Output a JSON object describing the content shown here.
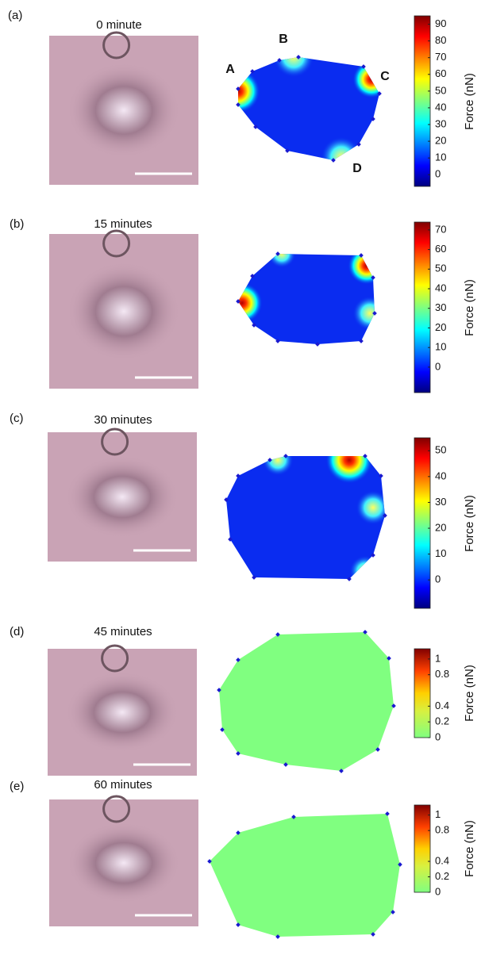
{
  "panels": [
    {
      "label": "(a)",
      "title": "0 minute",
      "markers": [
        "A",
        "B",
        "C",
        "D"
      ],
      "colorbar": {
        "label": "Force (nN)",
        "clim": [
          -7,
          95
        ],
        "ticks": [
          0,
          10,
          20,
          30,
          40,
          50,
          60,
          70,
          80,
          90
        ]
      }
    },
    {
      "label": "(b)",
      "title": "15 minutes",
      "colorbar": {
        "label": "Force (nN)",
        "clim": [
          -13,
          74
        ],
        "ticks": [
          0,
          10,
          20,
          30,
          40,
          50,
          60,
          70
        ]
      }
    },
    {
      "label": "(c)",
      "title": "30 minutes",
      "colorbar": {
        "label": "Force (nN)",
        "clim": [
          -11,
          55
        ],
        "ticks": [
          0,
          10,
          20,
          30,
          40,
          50
        ]
      }
    },
    {
      "label": "(d)",
      "title": "45 minutes",
      "colorbar": {
        "label": "Force (nN)",
        "clim": [
          0,
          1.13
        ],
        "ticks": [
          0,
          0.2,
          0.4,
          0.8,
          1
        ]
      }
    },
    {
      "label": "(e)",
      "title": "60 minutes",
      "colorbar": {
        "label": "Force (nN)",
        "clim": [
          0,
          1.13
        ],
        "ticks": [
          0,
          0.2,
          0.4,
          0.8,
          1
        ]
      }
    }
  ]
}
